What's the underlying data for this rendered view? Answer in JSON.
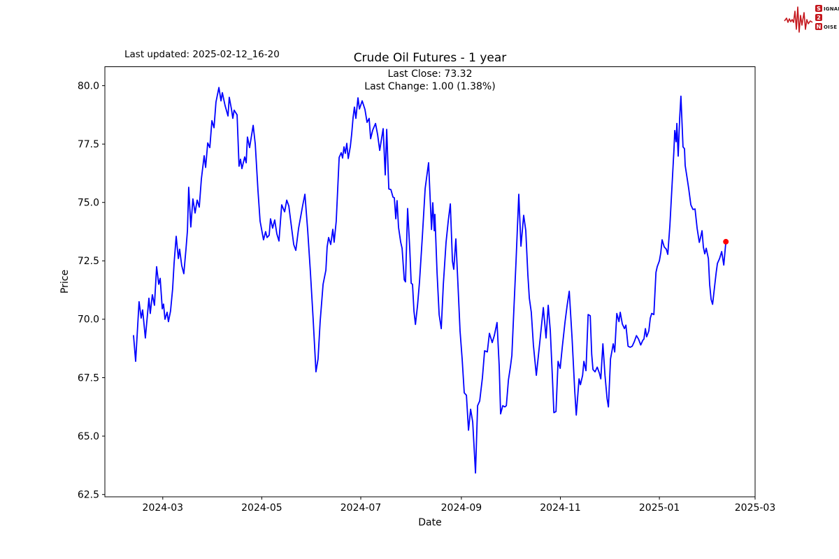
{
  "header": {
    "last_updated": "Last updated: 2025-02-12_16-20",
    "logo": {
      "line1_initial": "S",
      "line1_rest": "IGNAL",
      "line2_initial": "2",
      "line3_initial": "N",
      "line3_rest": "OISE",
      "accent_color": "#c4161c"
    }
  },
  "chart_data": {
    "type": "line",
    "title": "Crude Oil Futures - 1 year",
    "subtitle_line1": "Last Close: 73.32",
    "subtitle_line2": "Last Change: 1.00 (1.38%)",
    "xlabel": "Date",
    "ylabel": "Price",
    "last_close": 73.32,
    "last_change": "1.00 (1.38%)",
    "line_color": "#0000ff",
    "marker_color": "#ff0000",
    "start_date": "2024-02-12",
    "end_date": "2025-02-12",
    "points_format": "[days_since_start_date, price]",
    "x_domain_days": [
      -17.66,
      383
    ],
    "ylim": [
      62.4,
      80.81
    ],
    "grid": false,
    "x_tick_days": [
      18,
      79,
      140,
      202,
      263,
      324,
      383
    ],
    "x_tick_labels": [
      "2024-03",
      "2024-05",
      "2024-07",
      "2024-09",
      "2024-11",
      "2025-01",
      "2025-03"
    ],
    "y_tick_values": [
      62.5,
      65.0,
      67.5,
      70.0,
      72.5,
      75.0,
      77.5,
      80.0
    ],
    "y_tick_labels": [
      "62.5",
      "65.0",
      "67.5",
      "70.0",
      "72.5",
      "75.0",
      "77.5",
      "80.0"
    ],
    "points": [
      [
        0,
        69.3
      ],
      [
        1.3,
        68.2
      ],
      [
        3.4,
        70.75
      ],
      [
        4.7,
        70.05
      ],
      [
        5.6,
        70.4
      ],
      [
        7.3,
        69.2
      ],
      [
        9.5,
        70.9
      ],
      [
        10.3,
        70.25
      ],
      [
        11.6,
        71.05
      ],
      [
        12.9,
        70.6
      ],
      [
        14.2,
        72.25
      ],
      [
        15.5,
        71.5
      ],
      [
        16.4,
        71.75
      ],
      [
        17.7,
        70.45
      ],
      [
        18.5,
        70.65
      ],
      [
        19.4,
        70.0
      ],
      [
        20.7,
        70.3
      ],
      [
        21.5,
        69.9
      ],
      [
        22.8,
        70.35
      ],
      [
        24.1,
        71.3
      ],
      [
        25.0,
        72.4
      ],
      [
        26.3,
        73.55
      ],
      [
        27.6,
        72.6
      ],
      [
        28.4,
        73.0
      ],
      [
        29.7,
        72.3
      ],
      [
        31.0,
        71.95
      ],
      [
        32.3,
        73.0
      ],
      [
        33.2,
        73.8
      ],
      [
        34.0,
        75.65
      ],
      [
        35.3,
        73.95
      ],
      [
        36.6,
        75.15
      ],
      [
        37.9,
        74.55
      ],
      [
        39.2,
        75.1
      ],
      [
        40.5,
        74.8
      ],
      [
        41.8,
        76.0
      ],
      [
        43.5,
        77.0
      ],
      [
        44.4,
        76.5
      ],
      [
        45.7,
        77.55
      ],
      [
        47.0,
        77.35
      ],
      [
        48.3,
        78.5
      ],
      [
        49.6,
        78.2
      ],
      [
        50.8,
        79.3
      ],
      [
        52.6,
        79.92
      ],
      [
        53.9,
        79.35
      ],
      [
        54.7,
        79.7
      ],
      [
        56.4,
        79.15
      ],
      [
        58.2,
        78.7
      ],
      [
        59.0,
        79.5
      ],
      [
        60.3,
        79.0
      ],
      [
        61.2,
        78.6
      ],
      [
        62.0,
        78.95
      ],
      [
        63.8,
        78.75
      ],
      [
        65.0,
        76.55
      ],
      [
        65.9,
        76.85
      ],
      [
        66.8,
        76.45
      ],
      [
        68.5,
        76.95
      ],
      [
        69.4,
        76.7
      ],
      [
        70.2,
        77.8
      ],
      [
        71.5,
        77.35
      ],
      [
        73.7,
        78.3
      ],
      [
        75.0,
        77.5
      ],
      [
        76.7,
        75.5
      ],
      [
        78.0,
        74.2
      ],
      [
        80.1,
        73.4
      ],
      [
        81.4,
        73.75
      ],
      [
        82.3,
        73.5
      ],
      [
        83.6,
        73.6
      ],
      [
        84.4,
        74.3
      ],
      [
        85.7,
        73.9
      ],
      [
        87.0,
        74.25
      ],
      [
        88.3,
        73.65
      ],
      [
        89.6,
        73.35
      ],
      [
        91.3,
        74.9
      ],
      [
        93.1,
        74.6
      ],
      [
        94.4,
        75.1
      ],
      [
        95.7,
        74.85
      ],
      [
        97.4,
        73.9
      ],
      [
        98.7,
        73.2
      ],
      [
        100.0,
        72.95
      ],
      [
        101.7,
        73.9
      ],
      [
        103.0,
        74.4
      ],
      [
        104.3,
        74.9
      ],
      [
        105.6,
        75.35
      ],
      [
        107.3,
        73.8
      ],
      [
        109.0,
        72.0
      ],
      [
        110.7,
        70.0
      ],
      [
        112.4,
        67.75
      ],
      [
        113.7,
        68.3
      ],
      [
        115.0,
        69.9
      ],
      [
        116.8,
        71.5
      ],
      [
        118.5,
        72.1
      ],
      [
        119.3,
        73.1
      ],
      [
        120.2,
        73.5
      ],
      [
        121.5,
        73.2
      ],
      [
        122.8,
        73.85
      ],
      [
        123.6,
        73.3
      ],
      [
        124.9,
        74.2
      ],
      [
        126.7,
        76.93
      ],
      [
        128.0,
        77.13
      ],
      [
        128.8,
        76.9
      ],
      [
        129.7,
        77.38
      ],
      [
        130.5,
        77.1
      ],
      [
        131.4,
        77.53
      ],
      [
        132.3,
        76.88
      ],
      [
        133.6,
        77.4
      ],
      [
        134.4,
        77.93
      ],
      [
        135.3,
        78.63
      ],
      [
        136.1,
        79.08
      ],
      [
        137.0,
        78.6
      ],
      [
        138.3,
        79.48
      ],
      [
        139.2,
        79.0
      ],
      [
        140.9,
        79.35
      ],
      [
        142.6,
        78.98
      ],
      [
        143.9,
        78.43
      ],
      [
        145.2,
        78.6
      ],
      [
        146.1,
        77.73
      ],
      [
        147.4,
        78.1
      ],
      [
        149.1,
        78.38
      ],
      [
        150.4,
        77.9
      ],
      [
        151.7,
        77.23
      ],
      [
        153.8,
        78.16
      ],
      [
        155.1,
        76.18
      ],
      [
        156.0,
        78.13
      ],
      [
        157.3,
        75.58
      ],
      [
        158.6,
        75.55
      ],
      [
        159.9,
        75.23
      ],
      [
        160.7,
        75.2
      ],
      [
        161.6,
        74.3
      ],
      [
        162.4,
        75.08
      ],
      [
        163.3,
        73.94
      ],
      [
        164.6,
        73.3
      ],
      [
        165.5,
        73.04
      ],
      [
        166.8,
        71.69
      ],
      [
        167.6,
        71.6
      ],
      [
        168.9,
        74.74
      ],
      [
        170.2,
        73.0
      ],
      [
        171.1,
        71.54
      ],
      [
        171.9,
        71.5
      ],
      [
        172.8,
        70.34
      ],
      [
        173.7,
        69.78
      ],
      [
        175.0,
        70.6
      ],
      [
        176.2,
        71.6
      ],
      [
        178.0,
        73.6
      ],
      [
        179.7,
        75.6
      ],
      [
        181.8,
        76.7
      ],
      [
        183.6,
        73.84
      ],
      [
        184.4,
        74.99
      ],
      [
        185.3,
        73.79
      ],
      [
        185.7,
        74.49
      ],
      [
        187.0,
        72.0
      ],
      [
        188.3,
        70.2
      ],
      [
        189.6,
        69.6
      ],
      [
        190.9,
        71.5
      ],
      [
        192.6,
        73.3
      ],
      [
        193.9,
        74.2
      ],
      [
        195.2,
        74.94
      ],
      [
        196.5,
        72.49
      ],
      [
        197.3,
        72.14
      ],
      [
        198.6,
        73.44
      ],
      [
        199.9,
        71.49
      ],
      [
        201.2,
        69.5
      ],
      [
        202.5,
        68.3
      ],
      [
        203.8,
        66.85
      ],
      [
        205.1,
        66.75
      ],
      [
        206.4,
        65.25
      ],
      [
        207.7,
        66.15
      ],
      [
        209.0,
        65.6
      ],
      [
        210.7,
        63.42
      ],
      [
        212.0,
        66.3
      ],
      [
        213.3,
        66.5
      ],
      [
        215.0,
        67.5
      ],
      [
        216.3,
        68.65
      ],
      [
        218.0,
        68.6
      ],
      [
        219.3,
        69.4
      ],
      [
        221.0,
        69.0
      ],
      [
        222.3,
        69.3
      ],
      [
        224.0,
        69.86
      ],
      [
        225.3,
        68.0
      ],
      [
        226.2,
        65.95
      ],
      [
        227.5,
        66.3
      ],
      [
        228.8,
        66.25
      ],
      [
        229.7,
        66.3
      ],
      [
        231.0,
        67.4
      ],
      [
        232.3,
        68.0
      ],
      [
        233.1,
        68.45
      ],
      [
        234.4,
        70.5
      ],
      [
        235.7,
        72.5
      ],
      [
        237.4,
        75.35
      ],
      [
        238.7,
        73.13
      ],
      [
        240.4,
        74.45
      ],
      [
        241.7,
        73.8
      ],
      [
        243.0,
        71.9
      ],
      [
        243.9,
        70.9
      ],
      [
        245.1,
        70.3
      ],
      [
        246.4,
        68.9
      ],
      [
        248.2,
        67.6
      ],
      [
        250.3,
        69.0
      ],
      [
        252.5,
        70.5
      ],
      [
        254.2,
        69.2
      ],
      [
        255.5,
        70.6
      ],
      [
        256.8,
        69.5
      ],
      [
        258.1,
        67.5
      ],
      [
        259.0,
        66.0
      ],
      [
        260.3,
        66.05
      ],
      [
        261.6,
        68.2
      ],
      [
        262.9,
        67.9
      ],
      [
        264.2,
        68.8
      ],
      [
        265.9,
        69.9
      ],
      [
        267.2,
        70.6
      ],
      [
        268.5,
        71.2
      ],
      [
        270.2,
        69.2
      ],
      [
        271.9,
        66.9
      ],
      [
        272.8,
        65.9
      ],
      [
        274.5,
        67.45
      ],
      [
        275.4,
        67.2
      ],
      [
        276.7,
        67.6
      ],
      [
        277.5,
        68.2
      ],
      [
        278.8,
        67.8
      ],
      [
        280.1,
        70.2
      ],
      [
        281.4,
        70.15
      ],
      [
        282.3,
        68.5
      ],
      [
        283.1,
        67.85
      ],
      [
        284.4,
        67.75
      ],
      [
        285.7,
        67.95
      ],
      [
        287.0,
        67.7
      ],
      [
        287.9,
        67.45
      ],
      [
        289.2,
        68.95
      ],
      [
        290.5,
        67.6
      ],
      [
        291.8,
        66.6
      ],
      [
        292.6,
        66.25
      ],
      [
        293.9,
        68.3
      ],
      [
        295.6,
        68.95
      ],
      [
        296.5,
        68.6
      ],
      [
        297.8,
        70.25
      ],
      [
        299.1,
        69.9
      ],
      [
        299.9,
        70.3
      ],
      [
        301.2,
        69.8
      ],
      [
        302.5,
        69.6
      ],
      [
        303.4,
        69.75
      ],
      [
        304.7,
        68.85
      ],
      [
        306.0,
        68.8
      ],
      [
        307.3,
        68.85
      ],
      [
        308.6,
        69.05
      ],
      [
        309.9,
        69.3
      ],
      [
        311.2,
        69.15
      ],
      [
        312.5,
        68.9
      ],
      [
        313.8,
        69.1
      ],
      [
        314.5,
        69.15
      ],
      [
        315.4,
        69.6
      ],
      [
        316.2,
        69.25
      ],
      [
        317.5,
        69.5
      ],
      [
        318.4,
        70.05
      ],
      [
        319.3,
        70.25
      ],
      [
        320.6,
        70.2
      ],
      [
        321.9,
        72.0
      ],
      [
        322.7,
        72.25
      ],
      [
        324.0,
        72.5
      ],
      [
        324.9,
        72.85
      ],
      [
        325.7,
        73.4
      ],
      [
        327.0,
        73.1
      ],
      [
        328.3,
        73.0
      ],
      [
        329.2,
        72.78
      ],
      [
        330.5,
        74.0
      ],
      [
        332.2,
        76.23
      ],
      [
        333.0,
        77.23
      ],
      [
        333.5,
        78.08
      ],
      [
        334.3,
        77.6
      ],
      [
        334.8,
        78.38
      ],
      [
        335.6,
        76.98
      ],
      [
        336.5,
        78.6
      ],
      [
        337.3,
        79.55
      ],
      [
        338.6,
        77.38
      ],
      [
        339.5,
        77.3
      ],
      [
        339.9,
        76.58
      ],
      [
        341.2,
        76.0
      ],
      [
        342.1,
        75.58
      ],
      [
        343.4,
        74.9
      ],
      [
        344.7,
        74.7
      ],
      [
        346.0,
        74.72
      ],
      [
        347.3,
        73.89
      ],
      [
        348.6,
        73.29
      ],
      [
        349.4,
        73.5
      ],
      [
        350.3,
        73.79
      ],
      [
        351.1,
        73.09
      ],
      [
        352.0,
        72.8
      ],
      [
        352.9,
        73.04
      ],
      [
        354.2,
        72.6
      ],
      [
        355.0,
        71.49
      ],
      [
        355.9,
        70.85
      ],
      [
        356.8,
        70.64
      ],
      [
        358.1,
        71.44
      ],
      [
        359.0,
        71.99
      ],
      [
        359.8,
        72.39
      ],
      [
        361.1,
        72.6
      ],
      [
        362.4,
        72.9
      ],
      [
        363.7,
        72.32
      ],
      [
        365.0,
        73.32
      ]
    ]
  }
}
